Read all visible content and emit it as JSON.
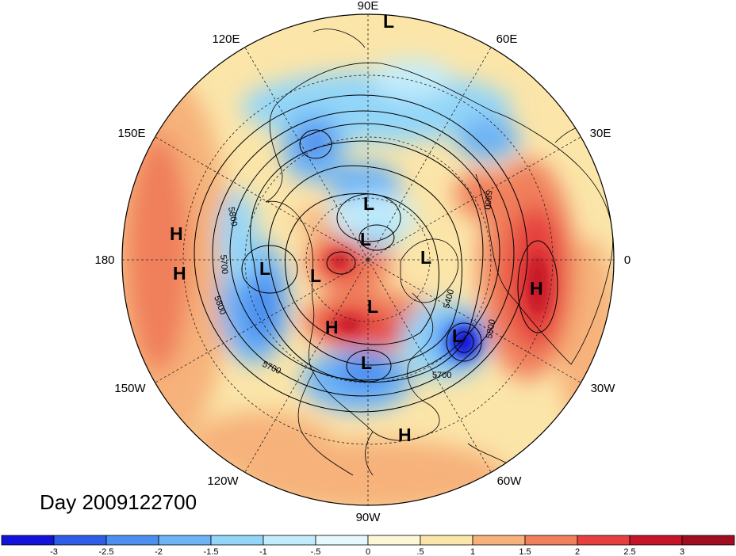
{
  "title": "Day 2009122700",
  "map": {
    "projection": "north polar stereographic",
    "longitude_labels": [
      "90E",
      "60E",
      "30E",
      "0",
      "30W",
      "60W",
      "90W",
      "120W",
      "150W",
      "180",
      "150E",
      "120E"
    ],
    "pressure_centers": [
      {
        "type": "L",
        "region": "north of Siberia"
      },
      {
        "type": "L",
        "region": "Central Siberia"
      },
      {
        "type": "L",
        "region": "Arctic Ocean"
      },
      {
        "type": "L",
        "region": "Barents Sea"
      },
      {
        "type": "L",
        "region": "Bering Sea"
      },
      {
        "type": "L",
        "region": "Alaska"
      },
      {
        "type": "L",
        "region": "Hudson Bay"
      },
      {
        "type": "L",
        "region": "North Atlantic"
      },
      {
        "type": "L",
        "region": "Central United States"
      },
      {
        "type": "H",
        "region": "Canadian Arctic"
      },
      {
        "type": "H",
        "region": "Central Pacific"
      },
      {
        "type": "H",
        "region": "Central Pacific south"
      },
      {
        "type": "H",
        "region": "North Africa"
      },
      {
        "type": "H",
        "region": "Caribbean"
      }
    ],
    "contour_labels": [
      "5800",
      "5700",
      "5800",
      "5400",
      "5800",
      "5700",
      "5800",
      "5700"
    ]
  },
  "colorbar": {
    "tick_labels": [
      "-3",
      "-2.5",
      "-2",
      "-1.5",
      "-1",
      "-.5",
      "0",
      ".5",
      "1",
      "1.5",
      "2",
      "2.5",
      "3"
    ],
    "colors": [
      "#1212d8",
      "#2e5ee8",
      "#4c8ff0",
      "#6db3f5",
      "#93d5f8",
      "#c2ecfb",
      "#e6f8fd",
      "#fdf7d6",
      "#fbe5a9",
      "#f6b27a",
      "#f07f5c",
      "#e5403e",
      "#c41528",
      "#a00d20"
    ]
  }
}
